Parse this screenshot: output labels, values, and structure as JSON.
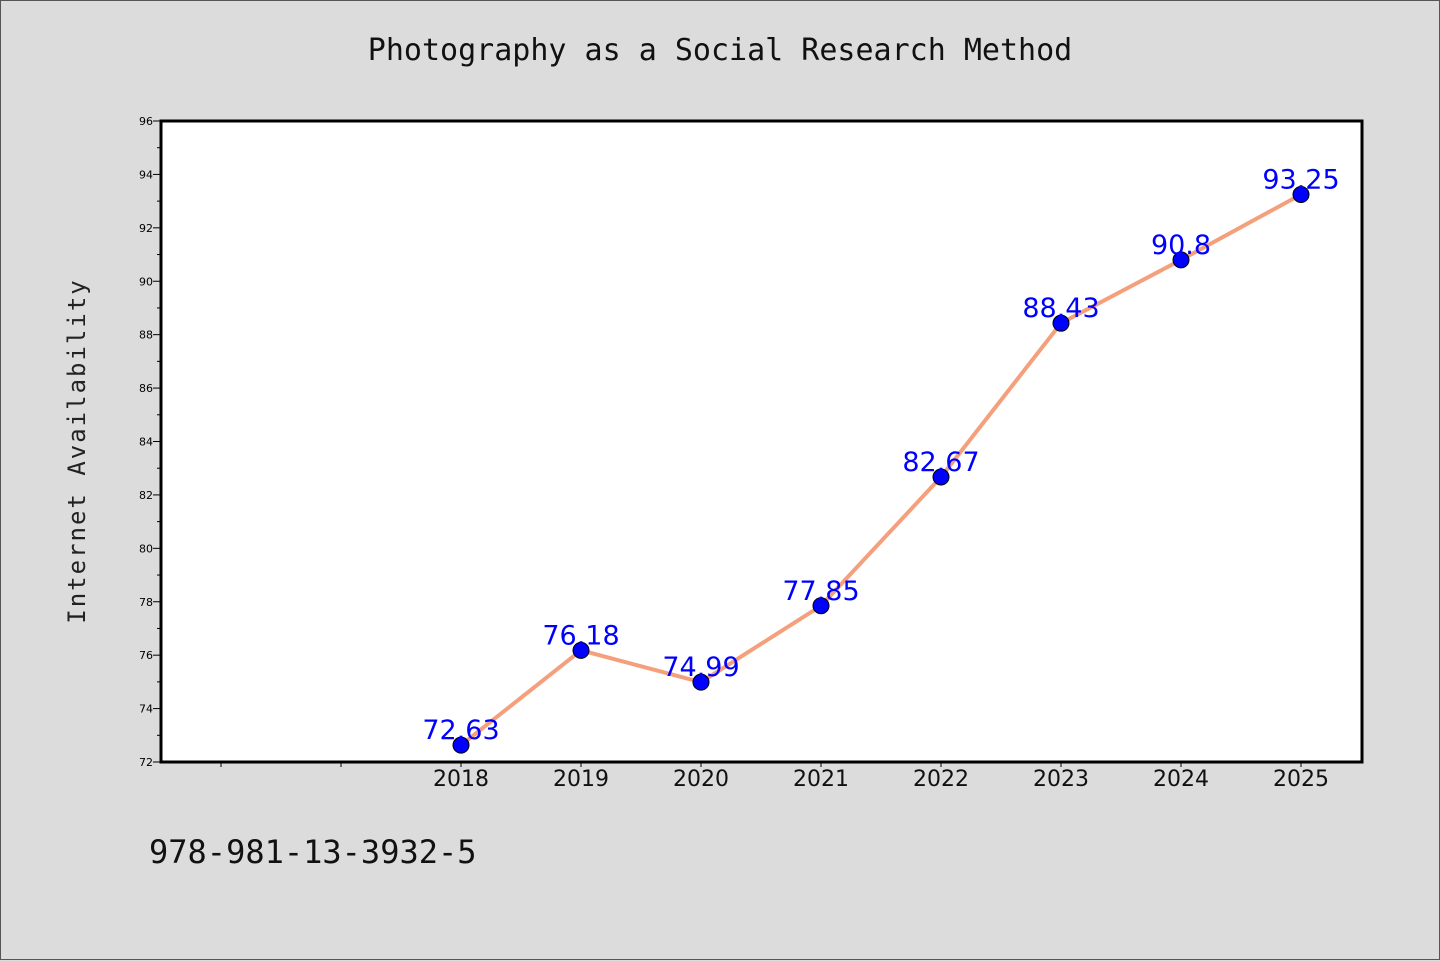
{
  "figure": {
    "title": "Photography as a Social Research Method",
    "footer_text": "978-981-13-3932-5"
  },
  "chart_data": {
    "type": "line",
    "title": "Photography as a Social Research Method",
    "xlabel": "",
    "ylabel": "Internet Availability",
    "x": [
      "2018",
      "2019",
      "2020",
      "2021",
      "2022",
      "2023",
      "2024",
      "2025"
    ],
    "series": [
      {
        "values": [
          72.63,
          76.18,
          74.99,
          77.85,
          82.67,
          88.43,
          90.8,
          93.25
        ],
        "data_labels": [
          "72.63",
          "76.18",
          "74.99",
          "77.85",
          "82.67",
          "88.43",
          "90.8",
          "93.25"
        ],
        "line_color": "#f4a07c",
        "marker_color": "#0000ff",
        "label_color": "#0000ff"
      }
    ],
    "ylim": [
      72,
      96
    ],
    "yticks": [
      "72",
      "74",
      "76",
      "78",
      "80",
      "82",
      "84",
      "86",
      "88",
      "90",
      "92",
      "94",
      "96"
    ],
    "grid": false,
    "legend": "none"
  }
}
